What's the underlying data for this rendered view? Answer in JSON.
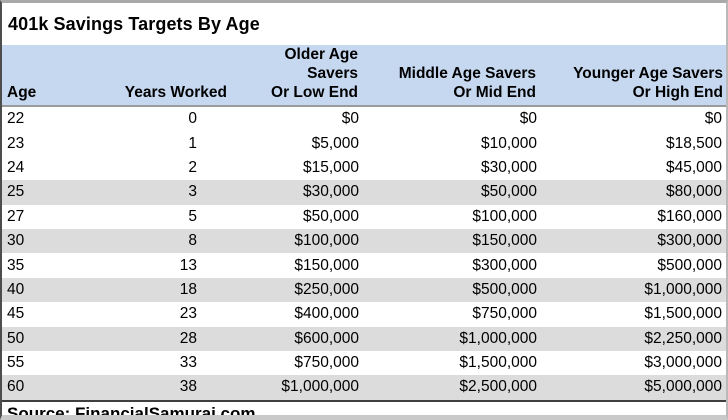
{
  "colors": {
    "header_bg": "#c6d8f0",
    "stripe_bg": "#dcdcdc",
    "header_border": "#9b9b9b",
    "dark_line": "#3f3f3f",
    "outer_top": "#a9a9a9",
    "outer_left": "#4d4d4d",
    "outer_right": "#b9b9b9",
    "outer_bottom": "#c9c9c9",
    "text": "#000000"
  },
  "chart_data": {
    "type": "table",
    "title": "401k Savings Targets By Age",
    "source": "Source: FinancialSamurai.com",
    "columns": [
      {
        "id": "age",
        "lines": [
          "Age"
        ]
      },
      {
        "id": "years",
        "lines": [
          "Years Worked"
        ]
      },
      {
        "id": "low",
        "lines": [
          "Older Age Savers",
          "Or Low End"
        ]
      },
      {
        "id": "mid",
        "lines": [
          "Middle Age Savers",
          "Or Mid End"
        ]
      },
      {
        "id": "high",
        "lines": [
          "Younger Age Savers",
          "Or High End"
        ]
      }
    ],
    "rows": [
      {
        "age": "22",
        "years": "0",
        "low": "$0",
        "mid": "$0",
        "high": "$0",
        "shaded": false
      },
      {
        "age": "23",
        "years": "1",
        "low": "$5,000",
        "mid": "$10,000",
        "high": "$18,500",
        "shaded": false
      },
      {
        "age": "24",
        "years": "2",
        "low": "$15,000",
        "mid": "$30,000",
        "high": "$45,000",
        "shaded": false
      },
      {
        "age": "25",
        "years": "3",
        "low": "$30,000",
        "mid": "$50,000",
        "high": "$80,000",
        "shaded": true
      },
      {
        "age": "27",
        "years": "5",
        "low": "$50,000",
        "mid": "$100,000",
        "high": "$160,000",
        "shaded": false
      },
      {
        "age": "30",
        "years": "8",
        "low": "$100,000",
        "mid": "$150,000",
        "high": "$300,000",
        "shaded": true
      },
      {
        "age": "35",
        "years": "13",
        "low": "$150,000",
        "mid": "$300,000",
        "high": "$500,000",
        "shaded": false
      },
      {
        "age": "40",
        "years": "18",
        "low": "$250,000",
        "mid": "$500,000",
        "high": "$1,000,000",
        "shaded": true
      },
      {
        "age": "45",
        "years": "23",
        "low": "$400,000",
        "mid": "$750,000",
        "high": "$1,500,000",
        "shaded": false
      },
      {
        "age": "50",
        "years": "28",
        "low": "$600,000",
        "mid": "$1,000,000",
        "high": "$2,250,000",
        "shaded": true
      },
      {
        "age": "55",
        "years": "33",
        "low": "$750,000",
        "mid": "$1,500,000",
        "high": "$3,000,000",
        "shaded": false
      },
      {
        "age": "60",
        "years": "38",
        "low": "$1,000,000",
        "mid": "$2,500,000",
        "high": "$5,000,000",
        "shaded": true
      }
    ]
  }
}
